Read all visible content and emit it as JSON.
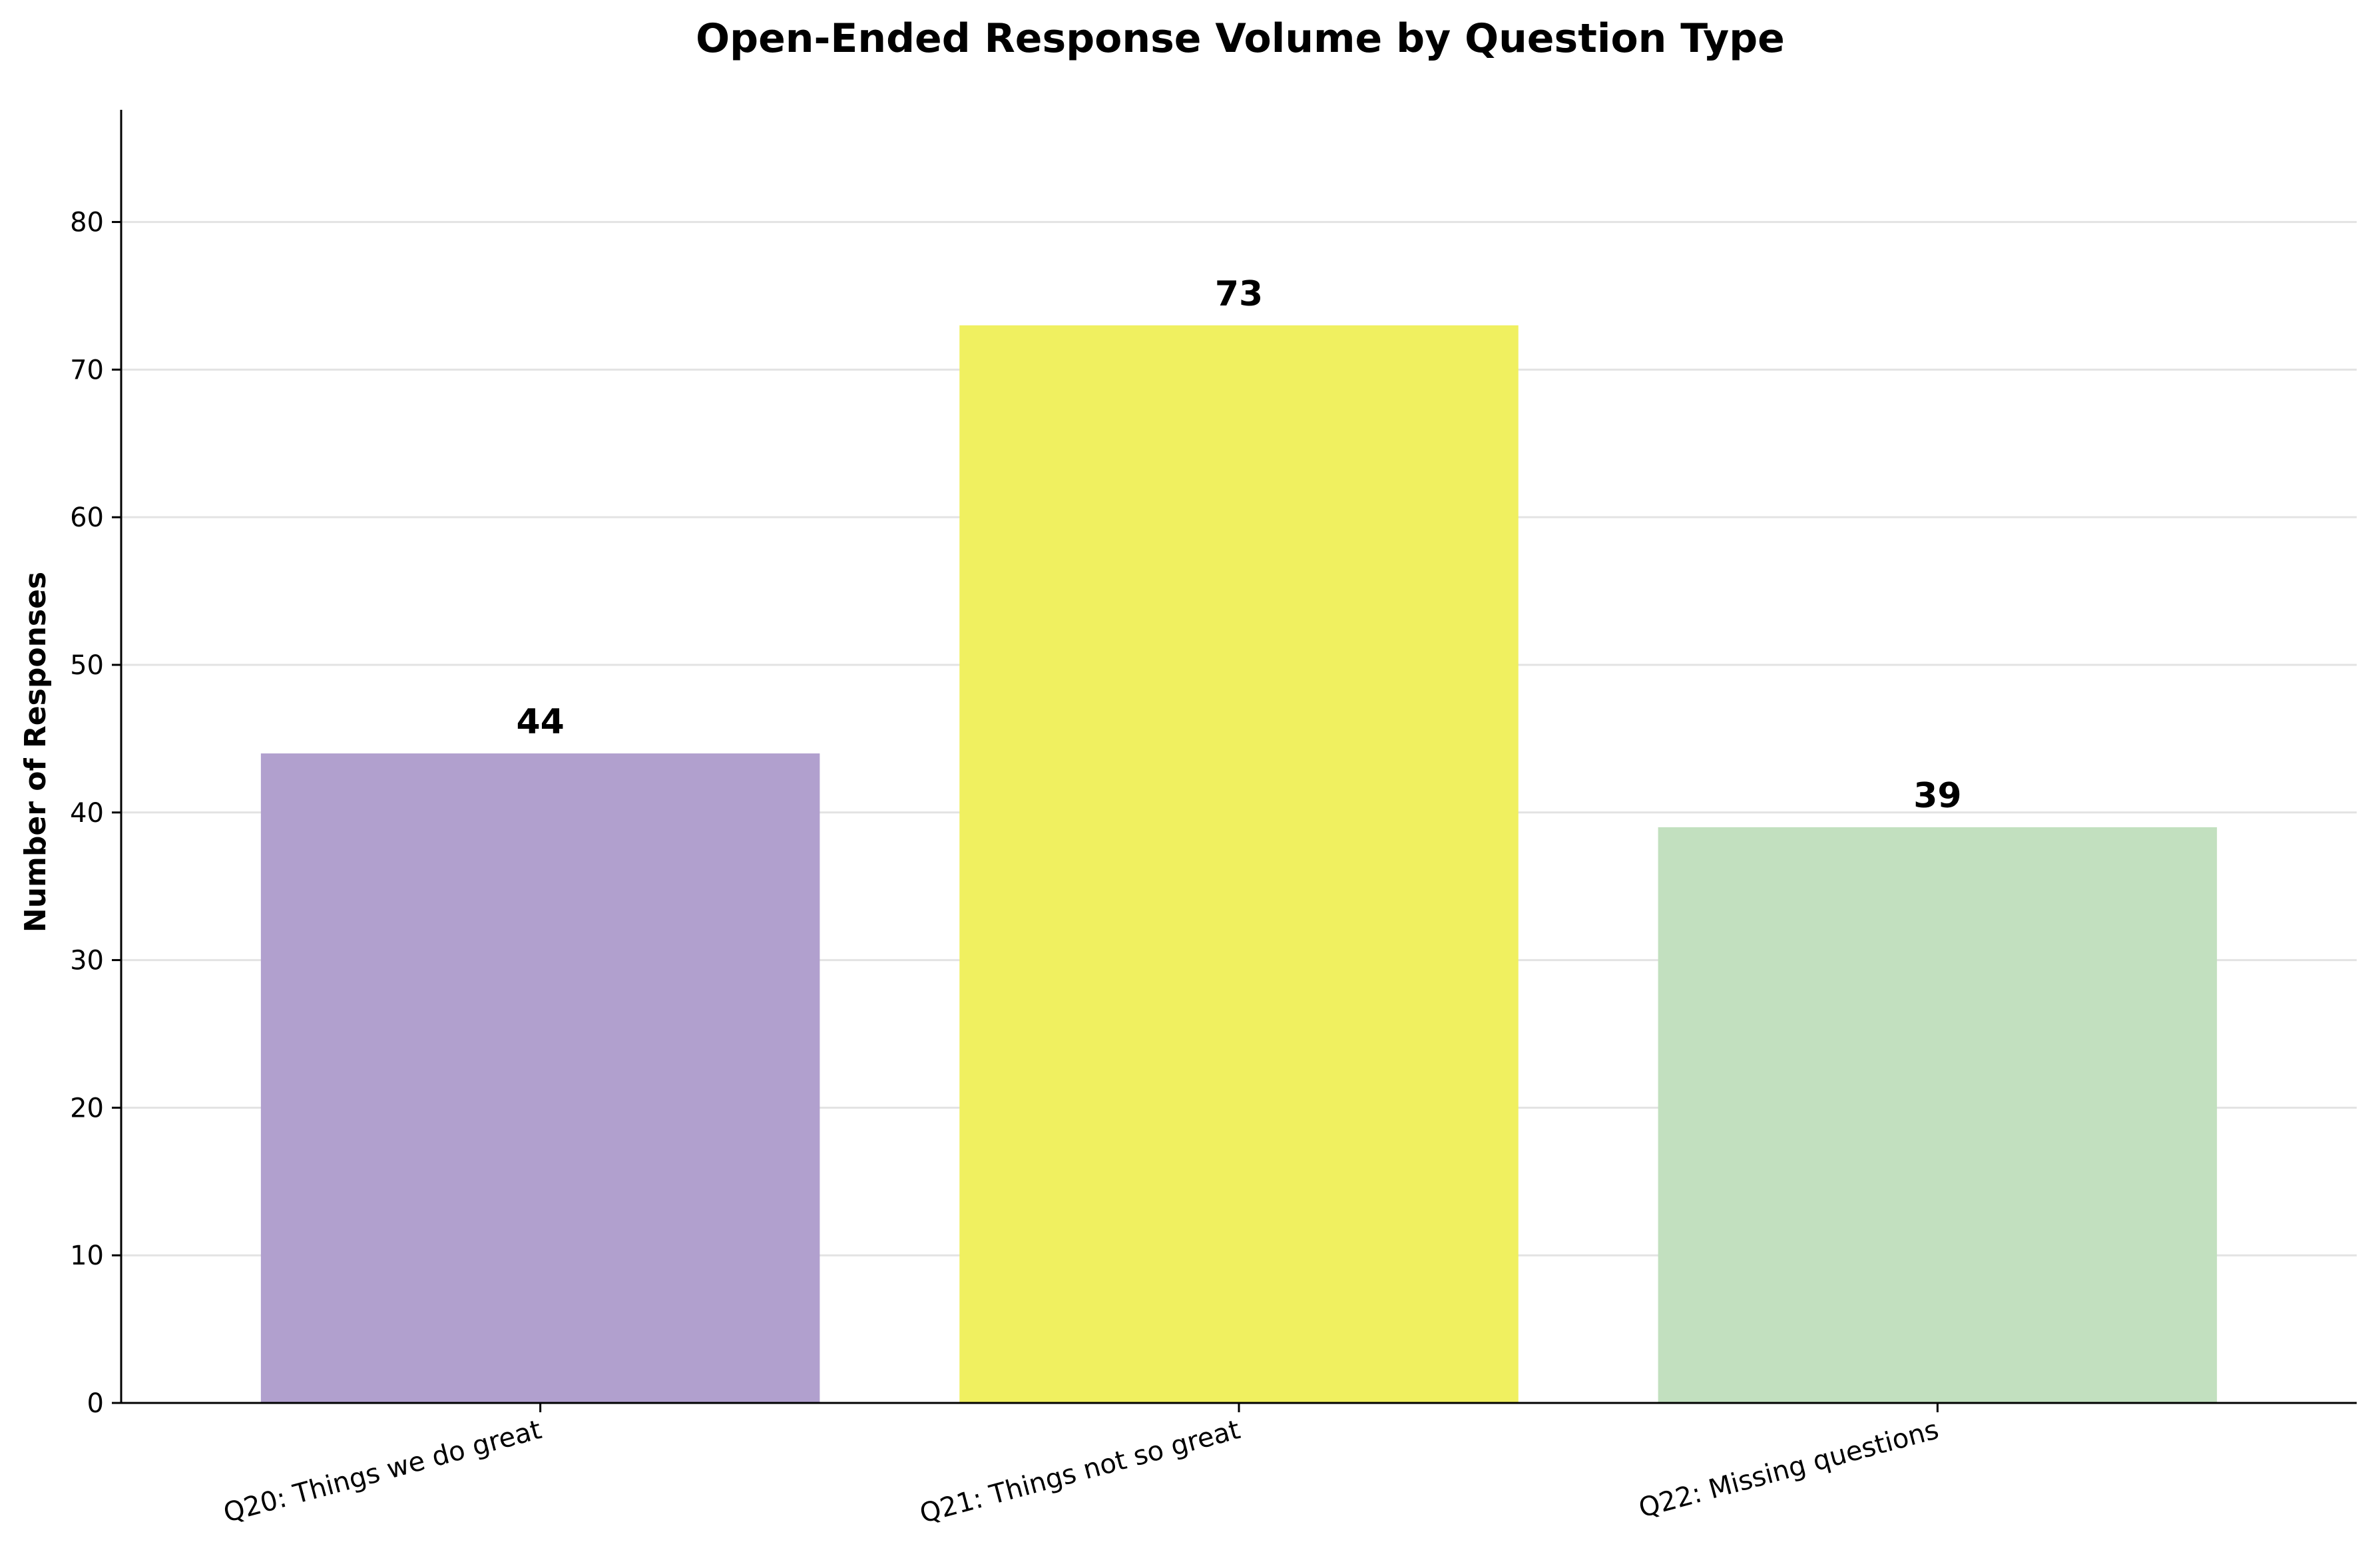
{
  "chart_data": {
    "type": "bar",
    "title": "Open-Ended Response Volume by Question Type",
    "xlabel": "",
    "ylabel": "Number of Responses",
    "ylim": [
      0,
      87.6
    ],
    "yticks": [
      0,
      10,
      20,
      30,
      40,
      50,
      60,
      70,
      80
    ],
    "grid": "y",
    "categories": [
      "Q20: Things we do great",
      "Q21: Things not so great",
      "Q22: Missing questions"
    ],
    "values": [
      44,
      73,
      39
    ],
    "data_labels": [
      "44",
      "73",
      "39"
    ],
    "colors": [
      "#b1a0ce",
      "#f0f060",
      "#c2e0bf"
    ]
  }
}
